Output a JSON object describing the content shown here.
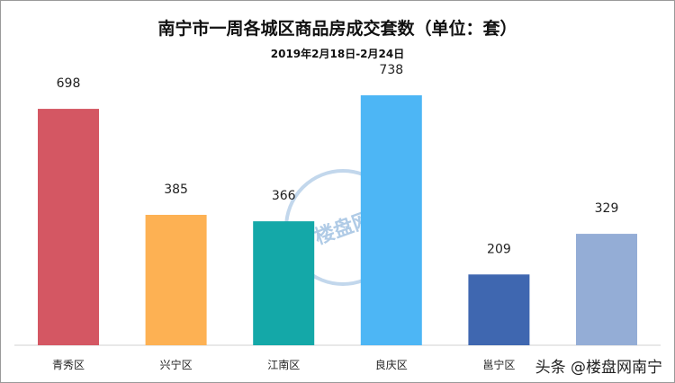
{
  "chart_data": {
    "type": "bar",
    "title": "南宁市一周各城区商品房成交套数（单位：套）",
    "subtitle": "2019年2月18日-2月24日",
    "categories": [
      "青秀区",
      "兴宁区",
      "江南区",
      "良庆区",
      "邕宁区",
      ""
    ],
    "values": [
      698,
      385,
      366,
      738,
      209,
      329
    ],
    "colors": [
      "#D45763",
      "#FDB153",
      "#14A8A8",
      "#4DB6F5",
      "#3F67B0",
      "#94ADD6"
    ],
    "ylim": [
      0,
      800
    ],
    "grid": false,
    "data_labels": true
  },
  "watermark": "头条 @楼盘网南宁",
  "stamp": "楼盘网"
}
